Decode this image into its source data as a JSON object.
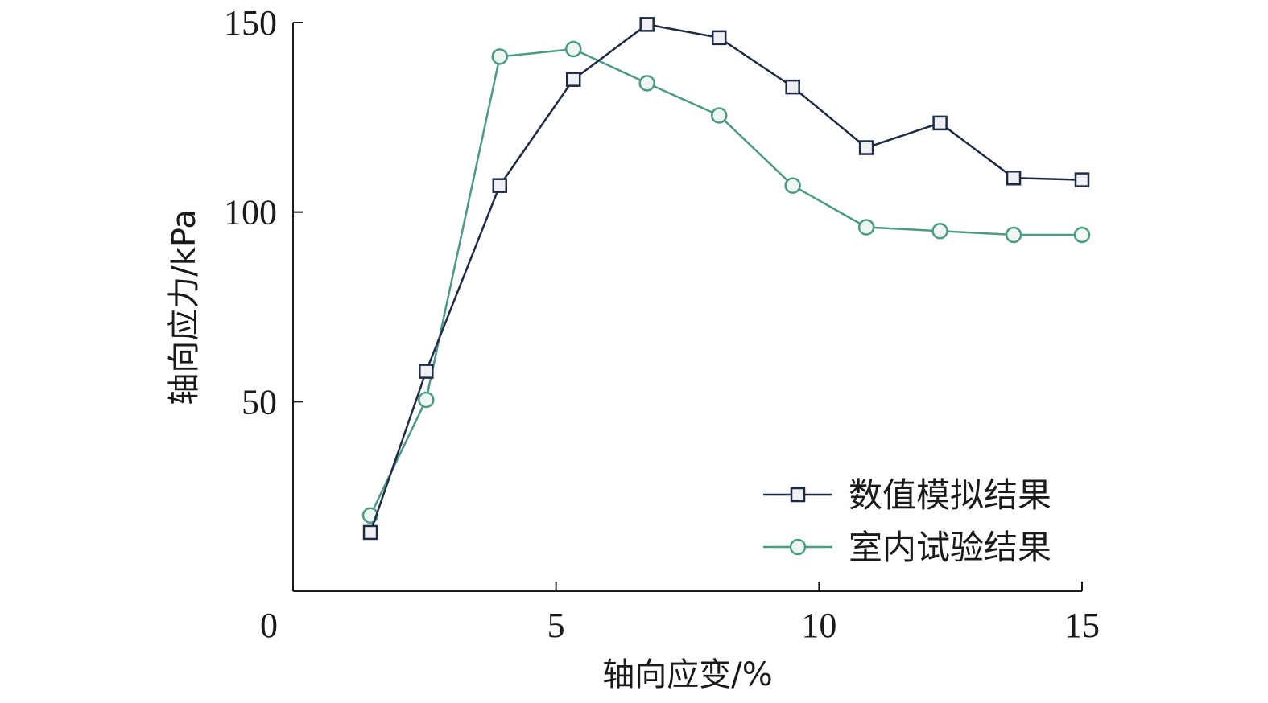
{
  "chart_data": {
    "type": "line",
    "xlabel": "轴向应变/%",
    "ylabel": "轴向应力/kPa",
    "xlim": [
      0,
      15
    ],
    "ylim": [
      0,
      150
    ],
    "x_ticks": [
      0,
      5,
      10,
      15
    ],
    "y_ticks": [
      50,
      100,
      150
    ],
    "grid": false,
    "legend_position": "bottom-right",
    "series": [
      {
        "name": "数值模拟结果",
        "color": "#1f2a44",
        "marker": "square",
        "x": [
          1.47,
          2.53,
          3.93,
          5.33,
          6.73,
          8.1,
          9.5,
          10.9,
          12.3,
          13.7,
          15.0
        ],
        "y": [
          15.5,
          58.0,
          107.0,
          135.0,
          149.5,
          146.0,
          133.0,
          117.0,
          123.5,
          109.0,
          108.5
        ]
      },
      {
        "name": "室内试验结果",
        "color": "#4a9a85",
        "marker": "circle",
        "x": [
          1.47,
          2.53,
          3.93,
          5.33,
          6.73,
          8.1,
          9.5,
          10.9,
          12.3,
          13.7,
          15.0
        ],
        "y": [
          20.0,
          50.5,
          141.0,
          143.0,
          134.0,
          125.5,
          107.0,
          96.0,
          95.0,
          94.0,
          94.0
        ]
      }
    ]
  }
}
